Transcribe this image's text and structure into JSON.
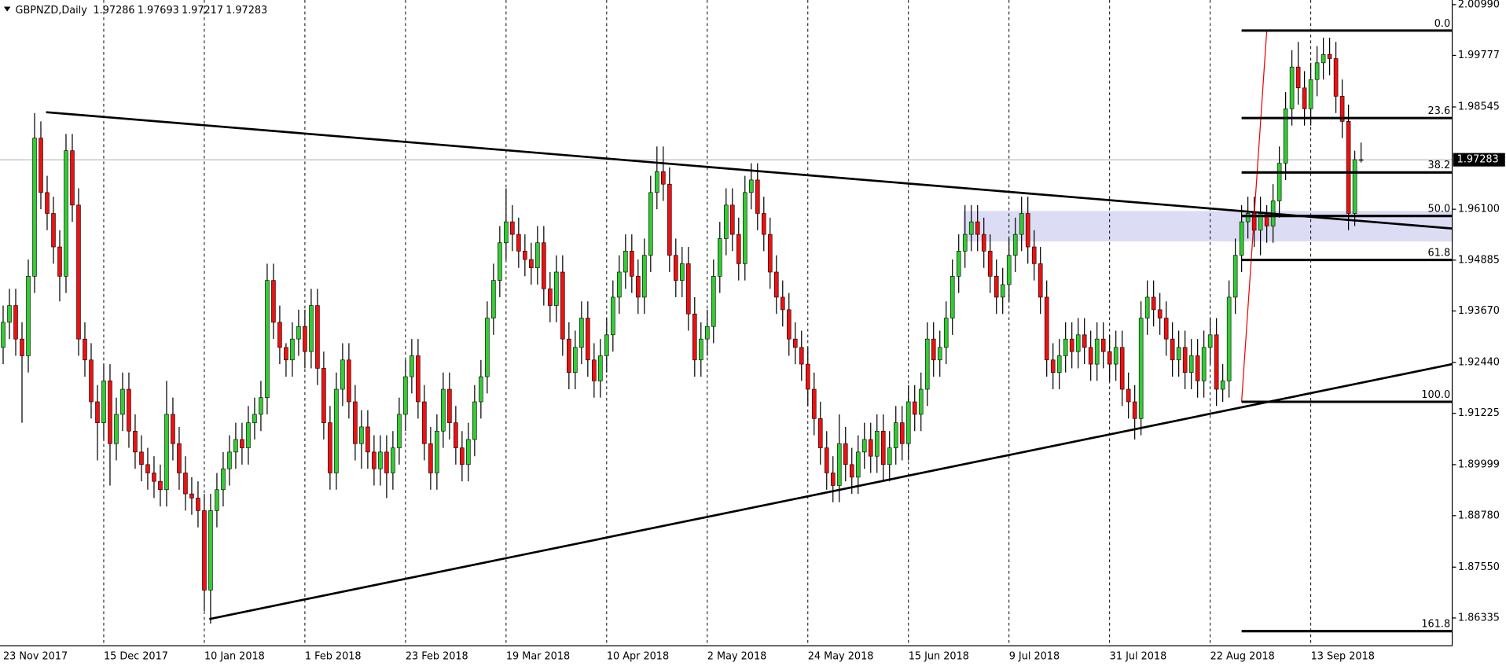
{
  "chart_data": {
    "type": "candlestick",
    "symbol": "GBPNZD,Daily",
    "categories": [
      "23 Nov 2017",
      null,
      null,
      null,
      null,
      null,
      null,
      null,
      null,
      null,
      null,
      null,
      null,
      null,
      null,
      null,
      "15 Dec 2017",
      null,
      null,
      null,
      null,
      null,
      null,
      null,
      null,
      null,
      null,
      null,
      null,
      null,
      null,
      null,
      "10 Jan 2018",
      null,
      null,
      null,
      null,
      null,
      null,
      null,
      null,
      null,
      null,
      null,
      null,
      null,
      null,
      null,
      "1 Feb 2018",
      null,
      null,
      null,
      null,
      null,
      null,
      null,
      null,
      null,
      null,
      null,
      null,
      null,
      null,
      null,
      "23 Feb 2018",
      null,
      null,
      null,
      null,
      null,
      null,
      null,
      null,
      null,
      null,
      null,
      null,
      null,
      null,
      null,
      "19 Mar 2018",
      null,
      null,
      null,
      null,
      null,
      null,
      null,
      null,
      null,
      null,
      null,
      null,
      null,
      null,
      null,
      "10 Apr 2018",
      null,
      null,
      null,
      null,
      null,
      null,
      null,
      null,
      null,
      null,
      null,
      null,
      null,
      null,
      null,
      "2 May 2018",
      null,
      null,
      null,
      null,
      null,
      null,
      null,
      null,
      null,
      null,
      null,
      null,
      null,
      null,
      null,
      "24 May 2018",
      null,
      null,
      null,
      null,
      null,
      null,
      null,
      null,
      null,
      null,
      null,
      null,
      null,
      null,
      null,
      "15 Jun 2018",
      null,
      null,
      null,
      null,
      null,
      null,
      null,
      null,
      null,
      null,
      null,
      null,
      null,
      null,
      null,
      "9 Jul 2018",
      null,
      null,
      null,
      null,
      null,
      null,
      null,
      null,
      null,
      null,
      null,
      null,
      null,
      null,
      null,
      "31 Jul 2018",
      null,
      null,
      null,
      null,
      null,
      null,
      null,
      null,
      null,
      null,
      null,
      null,
      null,
      null,
      null,
      "22 Aug 2018",
      null,
      null,
      null,
      null,
      null,
      null,
      null,
      null,
      null,
      null,
      null,
      null,
      null,
      null,
      null,
      "13 Sep 2018",
      null,
      null,
      null,
      null,
      null,
      null,
      null,
      null
    ],
    "open": [
      1.928,
      1.934,
      1.938,
      1.93,
      1.926,
      1.945,
      1.978,
      1.965,
      1.96,
      1.952,
      1.945,
      1.975,
      1.962,
      1.93,
      1.925,
      1.915,
      1.91,
      1.92,
      1.905,
      1.912,
      1.918,
      1.908,
      1.903,
      1.9,
      1.898,
      1.896,
      1.894,
      1.912,
      1.905,
      1.898,
      1.893,
      1.892,
      1.889,
      1.87,
      1.889,
      1.894,
      1.899,
      1.903,
      1.906,
      1.904,
      1.91,
      1.912,
      1.916,
      1.944,
      1.934,
      1.928,
      1.925,
      1.93,
      1.933,
      1.927,
      1.938,
      1.923,
      1.91,
      1.898,
      1.918,
      1.925,
      1.915,
      1.905,
      1.909,
      1.903,
      1.899,
      1.903,
      1.898,
      1.904,
      1.912,
      1.921,
      1.926,
      1.915,
      1.905,
      1.898,
      1.908,
      1.918,
      1.91,
      1.904,
      1.9,
      1.906,
      1.915,
      1.921,
      1.935,
      1.944,
      1.953,
      1.958,
      1.955,
      1.951,
      1.949,
      1.947,
      1.953,
      1.942,
      1.938,
      1.946,
      1.93,
      1.922,
      1.928,
      1.935,
      1.925,
      1.92,
      1.926,
      1.931,
      1.94,
      1.946,
      1.951,
      1.945,
      1.94,
      1.95,
      1.965,
      1.97,
      1.967,
      1.95,
      1.944,
      1.948,
      1.936,
      1.925,
      1.93,
      1.933,
      1.945,
      1.954,
      1.962,
      1.955,
      1.948,
      1.965,
      1.968,
      1.96,
      1.955,
      1.946,
      1.94,
      1.937,
      1.93,
      1.928,
      1.924,
      1.918,
      1.911,
      1.904,
      1.898,
      1.895,
      1.905,
      1.9,
      1.897,
      1.903,
      1.906,
      1.902,
      1.908,
      1.9,
      1.904,
      1.91,
      1.905,
      1.915,
      1.912,
      1.918,
      1.93,
      1.925,
      1.928,
      1.935,
      1.945,
      1.951,
      1.955,
      1.958,
      1.955,
      1.951,
      1.945,
      1.94,
      1.943,
      1.95,
      1.955,
      1.96,
      1.952,
      1.948,
      1.94,
      1.925,
      1.922,
      1.926,
      1.93,
      1.927,
      1.931,
      1.928,
      1.924,
      1.93,
      1.927,
      1.924,
      1.928,
      1.918,
      1.915,
      1.911,
      1.935,
      1.94,
      1.937,
      1.935,
      1.93,
      1.925,
      1.928,
      1.922,
      1.926,
      1.92,
      1.928,
      1.931,
      1.918,
      1.92,
      1.94,
      1.95,
      1.958,
      1.96,
      1.956,
      1.96,
      1.957,
      1.963,
      1.972,
      1.985,
      1.995,
      1.99,
      1.985,
      1.992,
      1.996,
      1.998,
      1.997,
      1.988,
      1.982,
      1.96,
      1.97286
    ],
    "high": [
      1.938,
      1.942,
      1.942,
      1.934,
      1.949,
      1.984,
      1.982,
      1.969,
      1.964,
      1.956,
      1.979,
      1.979,
      1.966,
      1.934,
      1.929,
      1.919,
      1.924,
      1.924,
      1.916,
      1.922,
      1.922,
      1.912,
      1.907,
      1.904,
      1.902,
      1.9,
      1.92,
      1.916,
      1.909,
      1.902,
      1.897,
      1.896,
      1.893,
      1.893,
      1.898,
      1.903,
      1.907,
      1.91,
      1.91,
      1.914,
      1.916,
      1.92,
      1.948,
      1.948,
      1.938,
      1.929,
      1.934,
      1.937,
      1.937,
      1.942,
      1.942,
      1.927,
      1.914,
      1.922,
      1.929,
      1.929,
      1.919,
      1.913,
      1.913,
      1.907,
      1.907,
      1.907,
      1.908,
      1.916,
      1.925,
      1.93,
      1.93,
      1.919,
      1.909,
      1.912,
      1.922,
      1.922,
      1.914,
      1.908,
      1.91,
      1.919,
      1.925,
      1.939,
      1.948,
      1.957,
      1.966,
      1.962,
      1.959,
      1.955,
      1.953,
      1.957,
      1.957,
      1.946,
      1.95,
      1.95,
      1.934,
      1.932,
      1.939,
      1.939,
      1.929,
      1.93,
      1.935,
      1.944,
      1.95,
      1.955,
      1.955,
      1.949,
      1.954,
      1.969,
      1.976,
      1.976,
      1.971,
      1.954,
      1.952,
      1.952,
      1.94,
      1.934,
      1.937,
      1.949,
      1.958,
      1.966,
      1.966,
      1.959,
      1.969,
      1.972,
      1.972,
      1.964,
      1.959,
      1.95,
      1.944,
      1.941,
      1.934,
      1.932,
      1.928,
      1.922,
      1.915,
      1.908,
      1.902,
      1.912,
      1.909,
      1.904,
      1.907,
      1.91,
      1.91,
      1.912,
      1.912,
      1.908,
      1.914,
      1.914,
      1.919,
      1.919,
      1.922,
      1.934,
      1.934,
      1.932,
      1.939,
      1.949,
      1.955,
      1.962,
      1.962,
      1.962,
      1.959,
      1.955,
      1.949,
      1.947,
      1.954,
      1.959,
      1.964,
      1.964,
      1.956,
      1.952,
      1.944,
      1.929,
      1.93,
      1.934,
      1.934,
      1.935,
      1.935,
      1.932,
      1.934,
      1.934,
      1.931,
      1.932,
      1.932,
      1.922,
      1.919,
      1.939,
      1.944,
      1.944,
      1.941,
      1.939,
      1.934,
      1.932,
      1.932,
      1.93,
      1.93,
      1.932,
      1.935,
      1.935,
      1.924,
      1.944,
      1.954,
      1.962,
      1.964,
      1.964,
      1.964,
      1.962,
      1.967,
      1.976,
      1.989,
      1.999,
      2.001,
      1.994,
      1.996,
      2.0,
      2.002,
      2.002,
      2.001,
      1.992,
      1.986,
      1.975,
      1.97693
    ],
    "low": [
      1.924,
      1.93,
      1.926,
      1.91,
      1.922,
      1.941,
      1.961,
      1.956,
      1.948,
      1.939,
      1.941,
      1.958,
      1.926,
      1.921,
      1.911,
      1.901,
      1.906,
      1.895,
      1.901,
      1.908,
      1.904,
      1.899,
      1.896,
      1.894,
      1.892,
      1.89,
      1.89,
      1.901,
      1.894,
      1.889,
      1.888,
      1.885,
      1.865,
      1.862,
      1.885,
      1.89,
      1.895,
      1.899,
      1.9,
      1.9,
      1.906,
      1.908,
      1.912,
      1.93,
      1.924,
      1.921,
      1.921,
      1.926,
      1.923,
      1.923,
      1.919,
      1.906,
      1.894,
      1.894,
      1.914,
      1.911,
      1.901,
      1.899,
      1.899,
      1.895,
      1.895,
      1.892,
      1.894,
      1.9,
      1.908,
      1.917,
      1.911,
      1.901,
      1.894,
      1.894,
      1.904,
      1.906,
      1.9,
      1.896,
      1.896,
      1.902,
      1.911,
      1.917,
      1.931,
      1.94,
      1.949,
      1.951,
      1.947,
      1.945,
      1.943,
      1.943,
      1.938,
      1.934,
      1.934,
      1.926,
      1.918,
      1.918,
      1.924,
      1.921,
      1.916,
      1.916,
      1.922,
      1.927,
      1.936,
      1.942,
      1.941,
      1.936,
      1.936,
      1.946,
      1.961,
      1.963,
      1.946,
      1.94,
      1.94,
      1.932,
      1.921,
      1.921,
      1.926,
      1.929,
      1.941,
      1.95,
      1.951,
      1.944,
      1.944,
      1.961,
      1.956,
      1.951,
      1.942,
      1.936,
      1.933,
      1.926,
      1.924,
      1.92,
      1.914,
      1.907,
      1.9,
      1.894,
      1.891,
      1.891,
      1.896,
      1.893,
      1.893,
      1.899,
      1.898,
      1.898,
      1.896,
      1.896,
      1.9,
      1.901,
      1.901,
      1.908,
      1.908,
      1.914,
      1.921,
      1.921,
      1.924,
      1.931,
      1.941,
      1.947,
      1.951,
      1.951,
      1.947,
      1.941,
      1.936,
      1.936,
      1.939,
      1.946,
      1.951,
      1.948,
      1.944,
      1.936,
      1.921,
      1.918,
      1.918,
      1.922,
      1.923,
      1.923,
      1.924,
      1.92,
      1.92,
      1.923,
      1.92,
      1.92,
      1.914,
      1.911,
      1.906,
      1.907,
      1.931,
      1.933,
      1.931,
      1.926,
      1.921,
      1.921,
      1.918,
      1.918,
      1.916,
      1.916,
      1.924,
      1.914,
      1.915,
      1.916,
      1.936,
      1.946,
      1.954,
      1.952,
      1.95,
      1.953,
      1.953,
      1.959,
      1.968,
      1.981,
      1.986,
      1.981,
      1.981,
      1.988,
      1.992,
      1.993,
      1.984,
      1.978,
      1.956,
      1.957,
      1.97217
    ],
    "close": [
      1.934,
      1.938,
      1.93,
      1.926,
      1.945,
      1.978,
      1.965,
      1.96,
      1.952,
      1.945,
      1.975,
      1.962,
      1.93,
      1.925,
      1.915,
      1.91,
      1.92,
      1.905,
      1.912,
      1.918,
      1.908,
      1.903,
      1.9,
      1.898,
      1.896,
      1.894,
      1.912,
      1.905,
      1.898,
      1.893,
      1.892,
      1.889,
      1.87,
      1.889,
      1.894,
      1.899,
      1.903,
      1.906,
      1.904,
      1.91,
      1.912,
      1.916,
      1.944,
      1.934,
      1.928,
      1.925,
      1.93,
      1.933,
      1.927,
      1.938,
      1.923,
      1.91,
      1.898,
      1.918,
      1.925,
      1.915,
      1.905,
      1.909,
      1.903,
      1.899,
      1.903,
      1.898,
      1.904,
      1.912,
      1.921,
      1.926,
      1.915,
      1.905,
      1.898,
      1.908,
      1.918,
      1.91,
      1.904,
      1.9,
      1.906,
      1.915,
      1.921,
      1.935,
      1.944,
      1.953,
      1.958,
      1.955,
      1.951,
      1.949,
      1.947,
      1.953,
      1.942,
      1.938,
      1.946,
      1.93,
      1.922,
      1.928,
      1.935,
      1.925,
      1.92,
      1.926,
      1.931,
      1.94,
      1.946,
      1.951,
      1.945,
      1.94,
      1.95,
      1.965,
      1.97,
      1.967,
      1.95,
      1.944,
      1.948,
      1.936,
      1.925,
      1.93,
      1.933,
      1.945,
      1.954,
      1.962,
      1.955,
      1.948,
      1.965,
      1.968,
      1.96,
      1.955,
      1.946,
      1.94,
      1.937,
      1.93,
      1.928,
      1.924,
      1.918,
      1.911,
      1.904,
      1.898,
      1.895,
      1.905,
      1.9,
      1.897,
      1.903,
      1.906,
      1.902,
      1.908,
      1.9,
      1.904,
      1.91,
      1.905,
      1.915,
      1.912,
      1.918,
      1.93,
      1.925,
      1.928,
      1.935,
      1.945,
      1.951,
      1.955,
      1.958,
      1.955,
      1.951,
      1.945,
      1.94,
      1.943,
      1.95,
      1.955,
      1.96,
      1.952,
      1.948,
      1.94,
      1.925,
      1.922,
      1.926,
      1.93,
      1.927,
      1.931,
      1.928,
      1.924,
      1.93,
      1.927,
      1.924,
      1.928,
      1.918,
      1.915,
      1.911,
      1.935,
      1.94,
      1.937,
      1.935,
      1.93,
      1.925,
      1.928,
      1.922,
      1.926,
      1.92,
      1.928,
      1.931,
      1.918,
      1.92,
      1.94,
      1.95,
      1.958,
      1.96,
      1.956,
      1.96,
      1.957,
      1.963,
      1.972,
      1.985,
      1.995,
      1.99,
      1.985,
      1.992,
      1.996,
      1.998,
      1.997,
      1.988,
      1.982,
      1.96,
      1.97286,
      1.97283
    ],
    "bull_color": "#33cc33",
    "bear_color": "#ee1111",
    "xlim": [
      -0.5,
      230.5
    ],
    "ylim": [
      1.8567,
      2.011
    ],
    "yticks": [
      {
        "value": 2.0099,
        "label": "2.00990"
      },
      1.99777,
      1.98545,
      {
        "value": 1.961,
        "label": "1.96100"
      },
      1.94885,
      {
        "value": 1.9367,
        "label": "1.93670"
      },
      {
        "value": 1.9244,
        "label": "1.92440"
      },
      1.91225,
      1.89999,
      {
        "value": 1.8878,
        "label": "1.88780"
      },
      {
        "value": 1.8755,
        "label": "1.87550"
      },
      1.86335
    ],
    "trendlines": [
      {
        "x": [
          6.83,
          230.5
        ],
        "y": [
          1.9842,
          1.9564
        ]
      },
      {
        "x": [
          32.8,
          230.5
        ],
        "y": [
          1.8631,
          1.924
        ]
      }
    ],
    "zone": {
      "x": [
        152.7,
        230.5
      ],
      "y": [
        1.9533,
        1.9606
      ],
      "color": "#dcdcf5"
    },
    "fibonacci": {
      "x": [
        197,
        201
      ],
      "y": [
        1.915,
        2.0037
      ],
      "levels": [
        {
          "label": "0.0",
          "value": 2.0037
        },
        {
          "label": "23.6",
          "value": 1.9828
        },
        {
          "label": "38.2",
          "value": 1.9698
        },
        {
          "label": "50.0",
          "value": 1.9594
        },
        {
          "label": "61.8",
          "value": 1.9489
        },
        {
          "label": "100.0",
          "value": 1.915
        },
        {
          "label": "161.8",
          "value": 1.8602
        }
      ]
    }
  }
}
